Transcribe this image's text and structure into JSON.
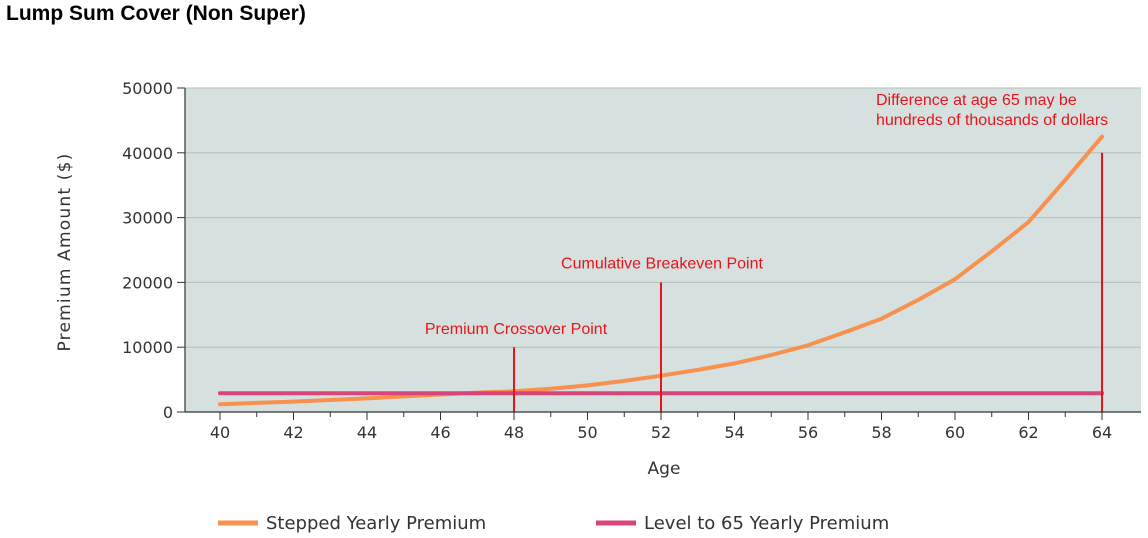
{
  "page": {
    "title": "Lump Sum Cover (Non Super)"
  },
  "chart_data": {
    "type": "line",
    "xlabel": "Age",
    "ylabel": "Premium Amount ($)",
    "xlim": [
      40,
      64
    ],
    "ylim": [
      0,
      50000
    ],
    "x_ticks": [
      40,
      42,
      44,
      46,
      48,
      50,
      52,
      54,
      56,
      58,
      60,
      62,
      64
    ],
    "y_ticks": [
      0,
      10000,
      20000,
      30000,
      40000,
      50000
    ],
    "grid": "horizontal",
    "legend_position": "bottom",
    "x": [
      40,
      41,
      42,
      43,
      44,
      45,
      46,
      47,
      48,
      49,
      50,
      51,
      52,
      53,
      54,
      55,
      56,
      57,
      58,
      59,
      60,
      61,
      62,
      63,
      64
    ],
    "series": [
      {
        "name": "Stepped Yearly Premium",
        "color": "#f7914d",
        "values": [
          1200,
          1400,
          1600,
          1850,
          2100,
          2400,
          2700,
          3000,
          3200,
          3600,
          4100,
          4800,
          5600,
          6500,
          7500,
          8800,
          10300,
          12300,
          14400,
          17300,
          20500,
          24800,
          29300,
          35800,
          42500
        ]
      },
      {
        "name": "Level to 65 Yearly Premium",
        "color": "#d9457a",
        "values": [
          2900,
          2900,
          2900,
          2900,
          2900,
          2900,
          2900,
          2900,
          2900,
          2900,
          2900,
          2900,
          2900,
          2900,
          2900,
          2900,
          2900,
          2900,
          2900,
          2900,
          2900,
          2900,
          2900,
          2900,
          2900
        ]
      }
    ],
    "annotations": [
      {
        "text": "Premium Crossover Point",
        "x": 48,
        "y_top": 10000
      },
      {
        "text": "Cumulative Breakeven Point",
        "x": 52,
        "y_top": 20000
      },
      {
        "lines": [
          "Difference at age 65 may be",
          "hundreds of thousands of dollars"
        ],
        "x": 64,
        "y_top": 40000
      }
    ],
    "colors": {
      "plot_background": "#d5e0df",
      "annotation": "#e8141c",
      "grid": "#b4c0c0"
    }
  }
}
